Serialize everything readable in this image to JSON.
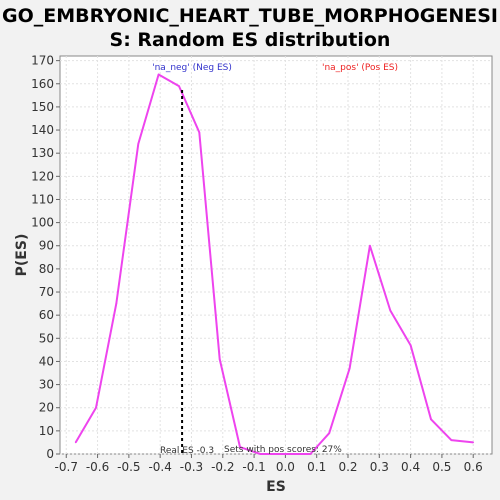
{
  "chart_data": {
    "type": "line",
    "title_line1": "GO_EMBRYONIC_HEART_TUBE_MORPHOGENESI",
    "title_line2": "S: Random ES distribution",
    "xlabel": "ES",
    "ylabel": "P(ES)",
    "xlim": [
      -0.72,
      0.66
    ],
    "ylim": [
      0,
      172
    ],
    "grid": true,
    "x_ticks": [
      "-0.7",
      "-0.6",
      "-0.5",
      "-0.4",
      "-0.3",
      "-0.2",
      "-0.1",
      "0.0",
      "0.1",
      "0.2",
      "0.3",
      "0.4",
      "0.5",
      "0.6"
    ],
    "y_ticks": [
      "0",
      "10",
      "20",
      "30",
      "40",
      "50",
      "60",
      "70",
      "80",
      "90",
      "100",
      "110",
      "120",
      "130",
      "140",
      "150",
      "160",
      "170"
    ],
    "series": [
      {
        "color": "#ee44ee",
        "x": [
          -0.67,
          -0.605,
          -0.54,
          -0.47,
          -0.405,
          -0.34,
          -0.275,
          -0.21,
          -0.145,
          -0.08,
          0.0,
          0.08,
          0.14,
          0.205,
          0.27,
          0.335,
          0.4,
          0.465,
          0.53,
          0.6
        ],
        "y": [
          5,
          20,
          65,
          134,
          164,
          159,
          139,
          41,
          3,
          0,
          0,
          0,
          9,
          37,
          90,
          62,
          47,
          15,
          6,
          5
        ]
      }
    ],
    "real_es": -0.33,
    "labels": {
      "neg": "'na_neg' (Neg ES)",
      "pos": "'na_pos' (Pos ES)",
      "real_es": "Real ES -0.3",
      "sets_pos": "Sets with pos scores: 27%"
    },
    "colors": {
      "neg_label": "#3333cc",
      "pos_label": "#ee2222",
      "line": "#ee44ee"
    }
  }
}
